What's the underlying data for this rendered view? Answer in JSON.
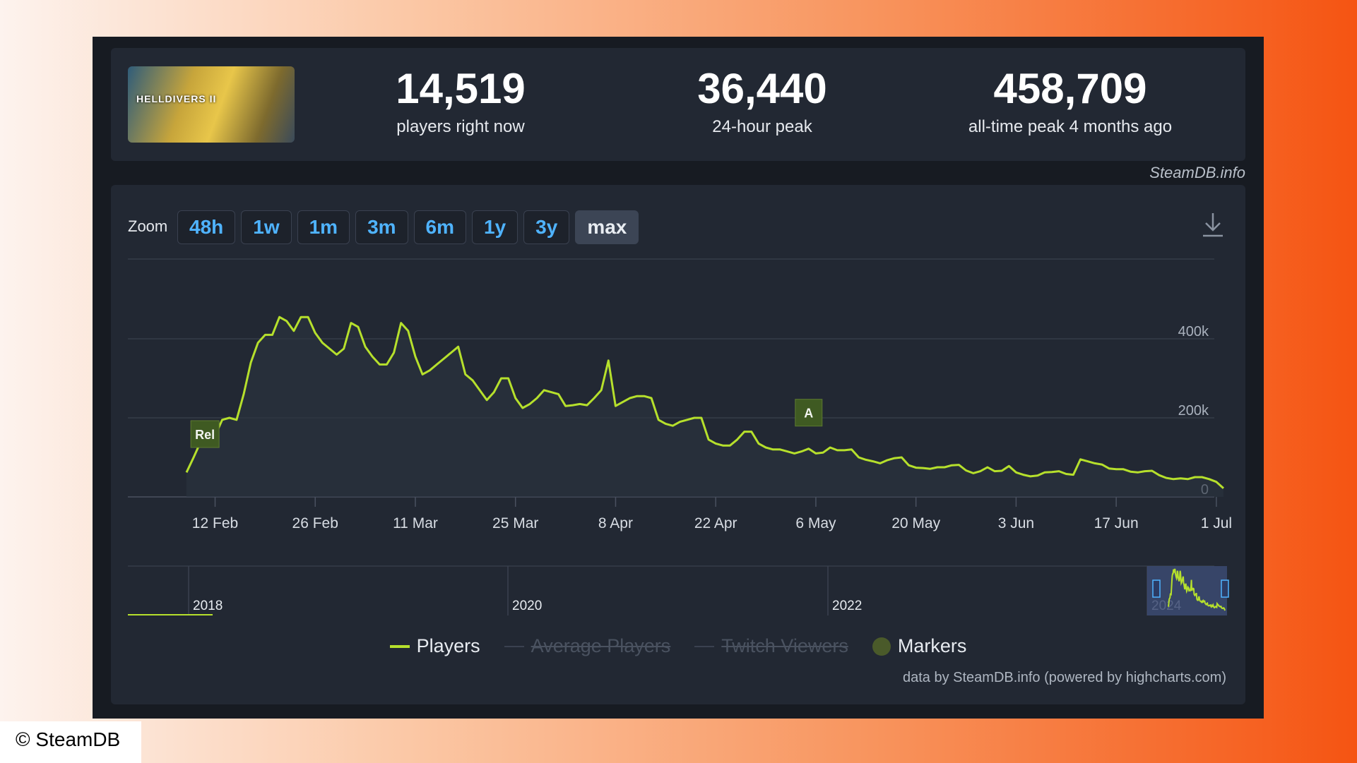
{
  "stats": {
    "current": {
      "value": "14,519",
      "label": "players right now"
    },
    "peak24": {
      "value": "36,440",
      "label": "24-hour peak"
    },
    "alltime": {
      "value": "458,709",
      "label": "all-time peak 4 months ago"
    }
  },
  "game": {
    "logo_text": "HELLDIVERS II"
  },
  "source_label": "SteamDB.info",
  "zoom": {
    "label": "Zoom",
    "buttons": [
      "48h",
      "1w",
      "1m",
      "3m",
      "6m",
      "1y",
      "3y",
      "max"
    ],
    "active": "max"
  },
  "chart_data": {
    "type": "line",
    "series": [
      {
        "name": "Players",
        "color": "#b6e02c",
        "x": [
          "2024-02-08",
          "2024-02-09",
          "2024-02-10",
          "2024-02-11",
          "2024-02-12",
          "2024-02-13",
          "2024-02-14",
          "2024-02-15",
          "2024-02-16",
          "2024-02-17",
          "2024-02-18",
          "2024-02-19",
          "2024-02-20",
          "2024-02-21",
          "2024-02-22",
          "2024-02-23",
          "2024-02-24",
          "2024-02-25",
          "2024-02-26",
          "2024-02-27",
          "2024-02-28",
          "2024-02-29",
          "2024-03-01",
          "2024-03-02",
          "2024-03-03",
          "2024-03-04",
          "2024-03-05",
          "2024-03-06",
          "2024-03-07",
          "2024-03-08",
          "2024-03-09",
          "2024-03-10",
          "2024-03-11",
          "2024-03-12",
          "2024-03-13",
          "2024-03-14",
          "2024-03-15",
          "2024-03-16",
          "2024-03-17",
          "2024-03-18",
          "2024-03-19",
          "2024-03-20",
          "2024-03-21",
          "2024-03-22",
          "2024-03-23",
          "2024-03-24",
          "2024-03-25",
          "2024-03-26",
          "2024-03-27",
          "2024-03-28",
          "2024-03-29",
          "2024-03-30",
          "2024-03-31",
          "2024-04-01",
          "2024-04-02",
          "2024-04-03",
          "2024-04-04",
          "2024-04-05",
          "2024-04-06",
          "2024-04-07",
          "2024-04-08",
          "2024-04-09",
          "2024-04-10",
          "2024-04-11",
          "2024-04-12",
          "2024-04-13",
          "2024-04-14",
          "2024-04-15",
          "2024-04-16",
          "2024-04-17",
          "2024-04-18",
          "2024-04-19",
          "2024-04-20",
          "2024-04-21",
          "2024-04-22",
          "2024-04-23",
          "2024-04-24",
          "2024-04-25",
          "2024-04-26",
          "2024-04-27",
          "2024-04-28",
          "2024-04-29",
          "2024-04-30",
          "2024-05-01",
          "2024-05-02",
          "2024-05-03",
          "2024-05-04",
          "2024-05-05",
          "2024-05-06",
          "2024-05-07",
          "2024-05-08",
          "2024-05-09",
          "2024-05-10",
          "2024-05-11",
          "2024-05-12",
          "2024-05-13",
          "2024-05-14",
          "2024-05-15",
          "2024-05-16",
          "2024-05-17",
          "2024-05-18",
          "2024-05-19",
          "2024-05-20",
          "2024-05-21",
          "2024-05-22",
          "2024-05-23",
          "2024-05-24",
          "2024-05-25",
          "2024-05-26",
          "2024-05-27",
          "2024-05-28",
          "2024-05-29",
          "2024-05-30",
          "2024-05-31",
          "2024-06-01",
          "2024-06-02",
          "2024-06-03",
          "2024-06-04",
          "2024-06-05",
          "2024-06-06",
          "2024-06-07",
          "2024-06-08",
          "2024-06-09",
          "2024-06-10",
          "2024-06-11",
          "2024-06-12",
          "2024-06-13",
          "2024-06-14",
          "2024-06-15",
          "2024-06-16",
          "2024-06-17",
          "2024-06-18",
          "2024-06-19",
          "2024-06-20",
          "2024-06-21",
          "2024-06-22",
          "2024-06-23",
          "2024-06-24",
          "2024-06-25",
          "2024-06-26",
          "2024-06-27",
          "2024-06-28",
          "2024-06-29",
          "2024-06-30",
          "2024-07-01",
          "2024-07-02"
        ],
        "values": [
          62000,
          100000,
          140000,
          150000,
          155000,
          195000,
          200000,
          195000,
          260000,
          340000,
          390000,
          410000,
          410000,
          455000,
          445000,
          420000,
          455000,
          455000,
          415000,
          390000,
          375000,
          360000,
          375000,
          440000,
          430000,
          380000,
          355000,
          335000,
          335000,
          365000,
          440000,
          420000,
          355000,
          310000,
          320000,
          335000,
          350000,
          365000,
          380000,
          310000,
          295000,
          270000,
          245000,
          265000,
          300000,
          300000,
          250000,
          225000,
          235000,
          250000,
          270000,
          265000,
          260000,
          230000,
          232000,
          235000,
          232000,
          250000,
          270000,
          345000,
          230000,
          240000,
          250000,
          255000,
          255000,
          250000,
          195000,
          185000,
          180000,
          190000,
          195000,
          200000,
          200000,
          145000,
          135000,
          130000,
          130000,
          145000,
          165000,
          165000,
          135000,
          125000,
          120000,
          120000,
          115000,
          110000,
          115000,
          122000,
          110000,
          112000,
          125000,
          118000,
          118000,
          120000,
          100000,
          94000,
          90000,
          85000,
          93000,
          98000,
          100000,
          80000,
          74000,
          73000,
          71000,
          75000,
          75000,
          80000,
          81000,
          67000,
          60000,
          65000,
          75000,
          65000,
          66000,
          78000,
          62000,
          56000,
          52000,
          54000,
          62000,
          63000,
          65000,
          58000,
          56000,
          95000,
          90000,
          85000,
          82000,
          72000,
          70000,
          70000,
          64000,
          62000,
          65000,
          66000,
          55000,
          48000,
          45000,
          47000,
          45000,
          50000,
          50000,
          45000,
          38000,
          22000
        ]
      }
    ],
    "x_ticks": [
      "12 Feb",
      "26 Feb",
      "11 Mar",
      "25 Mar",
      "8 Apr",
      "22 Apr",
      "6 May",
      "20 May",
      "3 Jun",
      "17 Jun",
      "1 Jul"
    ],
    "y_ticks": [
      "0",
      "200k",
      "400k"
    ],
    "ylim": [
      0,
      500000
    ],
    "markers": [
      {
        "label": "Rel",
        "x": "2024-02-09"
      },
      {
        "label": "A",
        "x": "2024-05-05"
      }
    ],
    "navigator": {
      "years": [
        "2018",
        "2020",
        "2022",
        "2024"
      ]
    },
    "legend": {
      "placement": "bottom-center"
    },
    "grid": true
  },
  "legend": {
    "players": "Players",
    "average": "Average Players",
    "twitch": "Twitch Viewers",
    "markers": "Markers"
  },
  "credits": "data by SteamDB.info (powered by highcharts.com)",
  "copyright": "© SteamDB"
}
